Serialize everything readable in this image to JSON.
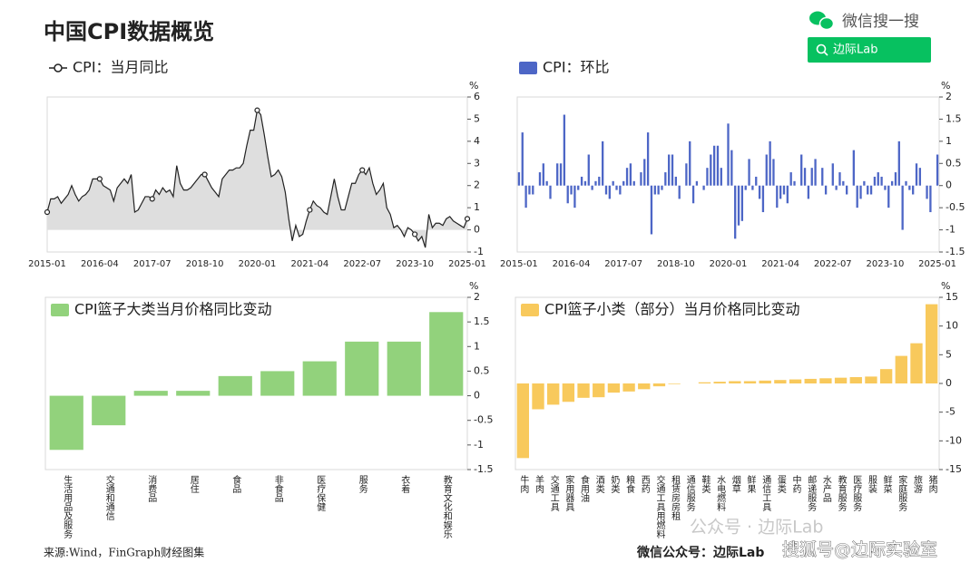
{
  "header": {
    "title": "中国CPI数据概览",
    "wechat": "微信搜一搜",
    "search": "边际Lab"
  },
  "chart_data": [
    {
      "type": "line",
      "unit": "%",
      "series": [
        {
          "name": "CPI：当月同比",
          "color": "#222222",
          "fill": "#dedede",
          "values": [
            0.8,
            1.4,
            1.4,
            1.5,
            1.2,
            1.4,
            1.6,
            2.0,
            1.6,
            1.3,
            1.5,
            1.6,
            1.8,
            2.3,
            2.3,
            2.3,
            2.0,
            1.9,
            1.8,
            1.3,
            1.9,
            2.1,
            2.3,
            2.1,
            2.5,
            0.8,
            0.9,
            1.2,
            1.5,
            1.5,
            1.4,
            1.8,
            1.6,
            1.9,
            1.7,
            1.8,
            1.5,
            2.9,
            2.1,
            1.8,
            1.8,
            1.9,
            2.1,
            2.3,
            2.5,
            2.5,
            2.2,
            1.9,
            1.7,
            1.5,
            2.3,
            2.5,
            2.7,
            2.7,
            2.8,
            2.8,
            3.0,
            3.8,
            4.5,
            4.5,
            5.4,
            5.2,
            4.3,
            3.3,
            2.4,
            2.5,
            2.7,
            2.4,
            1.7,
            0.5,
            -0.5,
            0.2,
            -0.3,
            -0.2,
            0.4,
            0.9,
            1.3,
            1.1,
            1.0,
            0.8,
            0.7,
            1.5,
            2.3,
            1.5,
            0.9,
            0.9,
            1.5,
            2.1,
            2.1,
            2.5,
            2.7,
            2.5,
            2.8,
            2.1,
            1.6,
            1.8,
            2.1,
            1.0,
            0.7,
            0.1,
            0.2,
            0,
            -0.3,
            0.1,
            0,
            -0.2,
            -0.5,
            -0.3,
            -0.8,
            0.7,
            0.1,
            0.3,
            0.3,
            0.2,
            0.5,
            0.6,
            0.4,
            0.3,
            0.2,
            0.1,
            0.5
          ]
        }
      ],
      "categories": [
        "2015-01",
        null,
        null,
        null,
        null,
        null,
        null,
        null,
        null,
        null,
        null,
        null,
        null,
        null,
        null,
        "2016-04",
        null,
        null,
        null,
        null,
        null,
        null,
        null,
        null,
        null,
        null,
        null,
        null,
        null,
        null,
        "2017-07",
        null,
        null,
        null,
        null,
        null,
        null,
        null,
        null,
        null,
        null,
        null,
        null,
        null,
        null,
        "2018-10",
        null,
        null,
        null,
        null,
        null,
        null,
        null,
        null,
        null,
        null,
        null,
        null,
        null,
        null,
        "2020-01",
        null,
        null,
        null,
        null,
        null,
        null,
        null,
        null,
        null,
        null,
        null,
        null,
        null,
        null,
        "2021-04",
        null,
        null,
        null,
        null,
        null,
        null,
        null,
        null,
        null,
        null,
        null,
        null,
        null,
        null,
        "2022-07",
        null,
        null,
        null,
        null,
        null,
        null,
        null,
        null,
        null,
        null,
        null,
        null,
        null,
        null,
        "2023-10",
        null,
        null,
        null,
        null,
        null,
        null,
        null,
        null,
        null,
        null,
        null,
        null,
        null,
        null,
        "2025-01"
      ],
      "ylim": [
        -1,
        6
      ],
      "yticks": [
        -1,
        0,
        1,
        2,
        3,
        4,
        5,
        6
      ],
      "legend": "upper left"
    },
    {
      "type": "bar",
      "unit": "%",
      "series": [
        {
          "name": "CPI：环比",
          "color": "#4d66c6",
          "values": [
            0.3,
            1.2,
            -0.5,
            -0.2,
            -0.2,
            0,
            0.3,
            0.5,
            0.1,
            -0.3,
            0,
            0.5,
            0.5,
            1.6,
            -0.4,
            -0.2,
            -0.5,
            -0.1,
            0.2,
            0.1,
            0.7,
            -0.1,
            0.1,
            0.2,
            1.0,
            -0.2,
            -0.3,
            0.1,
            -0.1,
            -0.2,
            0.1,
            0.4,
            0.5,
            0.1,
            0,
            0.3,
            0.6,
            1.2,
            -1.1,
            -0.2,
            -0.2,
            -0.1,
            0.3,
            0.7,
            0.7,
            0.2,
            -0.3,
            0,
            0.5,
            1.0,
            -0.4,
            0.1,
            0,
            -0.1,
            0.4,
            0.7,
            0.9,
            0.9,
            0.4,
            0,
            1.4,
            0.8,
            -1.2,
            -0.9,
            -0.8,
            -0.1,
            0.6,
            -0.1,
            0.2,
            -0.3,
            -0.6,
            0.7,
            1.0,
            0.6,
            -0.5,
            -0.3,
            -0.2,
            -0.4,
            0.3,
            0.1,
            0,
            0.7,
            0.4,
            -0.3,
            0.4,
            0.6,
            0,
            0.4,
            -0.2,
            0,
            0.5,
            -0.1,
            0.3,
            0.1,
            -0.2,
            0,
            0.8,
            -0.5,
            -0.3,
            0.1,
            -0.2,
            -0.2,
            0.2,
            0.3,
            0.2,
            -0.1,
            -0.5,
            0.1,
            0.3,
            1.0,
            -1.0,
            0.1,
            -0.1,
            -0.2,
            0.5,
            0.4,
            0,
            -0.3,
            -0.6,
            0,
            0.7
          ]
        }
      ],
      "categories": [
        "2015-01",
        null,
        null,
        null,
        null,
        null,
        null,
        null,
        null,
        null,
        null,
        null,
        null,
        null,
        null,
        "2016-04",
        null,
        null,
        null,
        null,
        null,
        null,
        null,
        null,
        null,
        null,
        null,
        null,
        null,
        null,
        "2017-07",
        null,
        null,
        null,
        null,
        null,
        null,
        null,
        null,
        null,
        null,
        null,
        null,
        null,
        null,
        "2018-10",
        null,
        null,
        null,
        null,
        null,
        null,
        null,
        null,
        null,
        null,
        null,
        null,
        null,
        null,
        "2020-01",
        null,
        null,
        null,
        null,
        null,
        null,
        null,
        null,
        null,
        null,
        null,
        null,
        null,
        null,
        "2021-04",
        null,
        null,
        null,
        null,
        null,
        null,
        null,
        null,
        null,
        null,
        null,
        null,
        null,
        null,
        "2022-07",
        null,
        null,
        null,
        null,
        null,
        null,
        null,
        null,
        null,
        null,
        null,
        null,
        null,
        null,
        "2023-10",
        null,
        null,
        null,
        null,
        null,
        null,
        null,
        null,
        null,
        null,
        null,
        null,
        null,
        null,
        "2025-01"
      ],
      "ylim": [
        -1.5,
        2
      ],
      "yticks": [
        -1.5,
        -1,
        -0.5,
        0,
        0.5,
        1,
        1.5,
        2
      ],
      "legend": "upper left"
    },
    {
      "type": "bar",
      "unit": "%",
      "vertical_labels": true,
      "series": [
        {
          "name": "CPI篮子大类当月价格同比变动",
          "color": "#92d27c",
          "values": [
            -1.1,
            -0.6,
            0.1,
            0.1,
            0.4,
            0.5,
            0.7,
            1.1,
            1.1,
            1.7
          ]
        }
      ],
      "categories": [
        "生活用品及服务",
        "交通和通信",
        "消费品",
        "居住",
        "食品",
        "非食品",
        "医疗保健",
        "服务",
        "衣着",
        "教育文化和娱乐"
      ],
      "ylim": [
        -1.5,
        2
      ],
      "yticks": [
        -1.5,
        -1,
        -0.5,
        0,
        0.5,
        1,
        1.5,
        2
      ],
      "legend": "upper left"
    },
    {
      "type": "bar",
      "unit": "%",
      "vertical_labels": true,
      "series": [
        {
          "name": "CPI篮子小类（部分）当月价格同比变动",
          "color": "#f8c95c",
          "values": [
            -13,
            -4.5,
            -3.7,
            -3.2,
            -2.5,
            -2.4,
            -1.6,
            -1.4,
            -1.0,
            -0.5,
            -0.1,
            0,
            0.2,
            0.3,
            0.4,
            0.4,
            0.5,
            0.6,
            0.7,
            0.8,
            0.9,
            1.0,
            1.1,
            1.2,
            2.5,
            4.8,
            7.0,
            13.8
          ]
        }
      ],
      "categories": [
        "牛肉",
        "羊肉",
        "交通工具",
        "家用器具",
        "食用油",
        "酒类",
        "奶类",
        "粮食",
        "西药",
        "交通工具用燃料",
        "租赁房房租",
        "通信服务",
        "鞋类",
        "水电燃料",
        "烟草",
        "鲜果",
        "通信工具",
        "蛋类",
        "中药",
        "邮递服务",
        "水产品",
        "教育服务",
        "医疗服务",
        "服装",
        "鲜菜",
        "家庭服务",
        "旅游",
        "猪肉"
      ],
      "ylim": [
        -15,
        15
      ],
      "yticks": [
        -15,
        -10,
        -5,
        0,
        5,
        10,
        15
      ],
      "legend": "upper left"
    }
  ],
  "footer": {
    "source": "来源:Wind，FinGraph财经图集",
    "account": "微信公众号：边际Lab",
    "watermark": "公众号 · 边际Lab",
    "sohu": "搜狐号@边际实验室"
  }
}
